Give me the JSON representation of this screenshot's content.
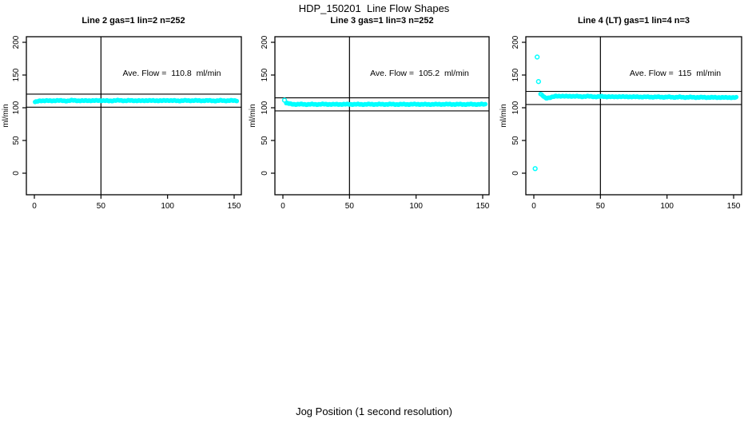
{
  "figure": {
    "title": "HDP_150201  Line Flow Shapes",
    "xlabel": "Jog Position (1 second resolution)",
    "background_color": "#ffffff",
    "point_color": "#00ffff",
    "axis_color": "#000000"
  },
  "chart_data": [
    {
      "type": "scatter",
      "title": "Line 2 gas=1 lin=2 n=252",
      "ylabel": "ml/min",
      "annotation": "Ave. Flow =  110.8  ml/min",
      "ave_flow": 110.8,
      "n": 252,
      "x_ticks": [
        0,
        50,
        100,
        150
      ],
      "y_ticks": [
        0,
        50,
        100,
        150,
        200
      ],
      "xlim": [
        -6,
        156
      ],
      "ylim": [
        -33,
        208
      ],
      "grid": false,
      "vline_x": 50,
      "hlines": [
        100.8,
        120.8
      ],
      "band": {
        "x_start": 0.5,
        "x_end": 152,
        "y": [
          108.8,
          110.6,
          111.0,
          110.4,
          111.2,
          110.8,
          110.5,
          111.3,
          110.9,
          110.6,
          111.1,
          110.7,
          111.2,
          110.8,
          110.5,
          111.0,
          111.3,
          110.7,
          111.1,
          110.9,
          110.6,
          111.2,
          110.8,
          111.0,
          110.7,
          111.3,
          110.9,
          110.6,
          111.1,
          110.8,
          111.2,
          110.7,
          111.0,
          110.9,
          110.6,
          111.1,
          110.8,
          111.0,
          110.9
        ]
      },
      "outliers": []
    },
    {
      "type": "scatter",
      "title": "Line 3 gas=1 lin=3 n=252",
      "ylabel": "ml/min",
      "annotation": "Ave. Flow =  105.2  ml/min",
      "ave_flow": 105.2,
      "n": 252,
      "x_ticks": [
        0,
        50,
        100,
        150
      ],
      "y_ticks": [
        0,
        50,
        100,
        150,
        200
      ],
      "xlim": [
        -6,
        156
      ],
      "ylim": [
        -33,
        208
      ],
      "grid": false,
      "vline_x": 50,
      "hlines": [
        95.2,
        115.2
      ],
      "band": {
        "x_start": 2.5,
        "x_end": 152,
        "y": [
          107.0,
          105.6,
          105.2,
          105.4,
          105.1,
          105.3,
          105.2,
          105.4,
          105.3,
          105.1,
          105.3,
          105.2,
          105.4,
          105.2,
          105.3,
          105.1,
          105.4,
          105.2,
          105.3,
          105.2,
          105.4,
          105.1,
          105.3,
          105.2,
          105.3,
          105.4,
          105.2,
          105.1,
          105.3,
          105.2,
          105.4,
          105.3,
          105.2,
          105.3,
          105.1,
          105.4,
          105.2,
          105.3,
          105.2
        ]
      },
      "outliers": [
        [
          1.2,
          111.5
        ]
      ]
    },
    {
      "type": "scatter",
      "title": "Line 4 (LT) gas=1 lin=4 n=3",
      "ylabel": "ml/min",
      "annotation": "Ave. Flow =  115  ml/min",
      "ave_flow": 115,
      "n": 3,
      "x_ticks": [
        0,
        50,
        100,
        150
      ],
      "y_ticks": [
        0,
        50,
        100,
        150,
        200
      ],
      "xlim": [
        -6,
        156
      ],
      "ylim": [
        -33,
        208
      ],
      "grid": false,
      "vline_x": 50,
      "hlines": [
        105,
        125
      ],
      "band": {
        "x_start": 5,
        "x_end": 152,
        "y": [
          121.0,
          114.5,
          116.0,
          117.6,
          117.9,
          117.3,
          117.7,
          117.4,
          117.0,
          117.5,
          117.1,
          116.8,
          117.3,
          116.9,
          116.6,
          117.1,
          116.7,
          117.0,
          116.5,
          116.9,
          116.4,
          116.7,
          116.3,
          116.6,
          116.2,
          116.5,
          116.0,
          116.4,
          115.9,
          116.2,
          115.8,
          116.1,
          115.7,
          116.0,
          115.6,
          115.9,
          115.5,
          115.8,
          115.6
        ]
      },
      "outliers": [
        [
          1.0,
          7
        ],
        [
          2.5,
          177.5
        ],
        [
          3.5,
          140
        ]
      ]
    }
  ]
}
